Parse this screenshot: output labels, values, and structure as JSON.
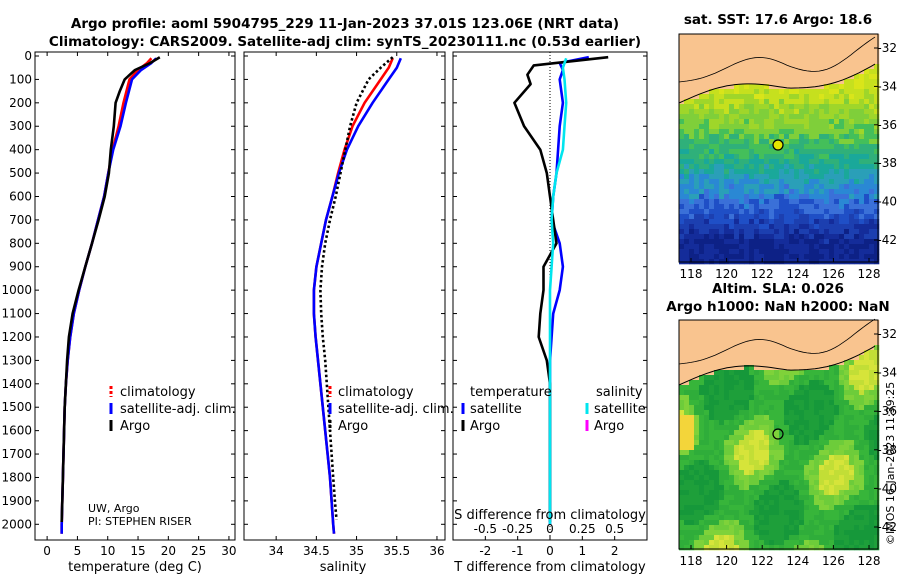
{
  "header": {
    "title_line1": "Argo profile: aoml 5904795_229 11-Jan-2023 37.01S 123.06E (NRT data)",
    "title_line2": "Climatology: CARS2009. Satellite-adj clim: synTS_20230111.nc (0.53d earlier)"
  },
  "credits": {
    "line1": "UW, Argo",
    "line2": "PI: STEPHEN RISER"
  },
  "timestamp": "©IMOS 16-Jan-2023 11:39:25",
  "colors": {
    "climatology": "#ff0000",
    "satellite": "#0000ff",
    "argo": "#000000",
    "sal_satellite": "#00e5ee",
    "sal_argo": "#ff00ff"
  },
  "maps": {
    "sst": {
      "title": "sat. SST: 17.6 Argo: 18.6",
      "yticks": [
        "-32",
        "-34",
        "-36",
        "-38",
        "-40",
        "-42"
      ],
      "xticks": [
        "118",
        "120",
        "122",
        "124",
        "126",
        "128"
      ]
    },
    "sla": {
      "title1": "Altim. SLA: 0.026",
      "title2": "Argo h1000: NaN h2000: NaN",
      "yticks": [
        "-32",
        "-34",
        "-36",
        "-38",
        "-40",
        "-42"
      ],
      "xticks": [
        "118",
        "120",
        "122",
        "124",
        "126",
        "128"
      ]
    }
  },
  "chart_data": [
    {
      "type": "line",
      "name": "temperature profile",
      "xlabel": "temperature (deg C)",
      "ylabel": "",
      "xlim": [
        -2,
        31
      ],
      "ylim": [
        2050,
        0
      ],
      "xticks": [
        0,
        5,
        10,
        15,
        20,
        25,
        30
      ],
      "yticks": [
        0,
        100,
        200,
        300,
        400,
        500,
        600,
        700,
        800,
        900,
        1000,
        1100,
        1200,
        1300,
        1400,
        1500,
        1600,
        1700,
        1800,
        1900,
        2000
      ],
      "legend": [
        "climatology",
        "satellite-adj. clim.",
        "Argo"
      ],
      "series": [
        {
          "name": "climatology",
          "color": "#ff0000",
          "dash": false,
          "points": [
            [
              17.2,
              10
            ],
            [
              16.5,
              30
            ],
            [
              15,
              60
            ],
            [
              13.6,
              100
            ],
            [
              12.6,
              200
            ],
            [
              11.8,
              300
            ],
            [
              10.8,
              400
            ],
            [
              10.1,
              500
            ],
            [
              9.4,
              600
            ],
            [
              8.4,
              700
            ],
            [
              7.4,
              800
            ],
            [
              6.3,
              900
            ],
            [
              5.3,
              1000
            ],
            [
              4.4,
              1100
            ],
            [
              3.8,
              1200
            ],
            [
              3.4,
              1300
            ],
            [
              3.1,
              1400
            ],
            [
              2.9,
              1500
            ],
            [
              2.8,
              1600
            ],
            [
              2.7,
              1700
            ],
            [
              2.6,
              1800
            ],
            [
              2.5,
              1900
            ],
            [
              2.4,
              2000
            ],
            [
              2.4,
              2040
            ]
          ]
        },
        {
          "name": "satellite-adj. clim.",
          "color": "#0000ff",
          "dash": false,
          "points": [
            [
              18,
              10
            ],
            [
              17.2,
              30
            ],
            [
              15.5,
              60
            ],
            [
              14,
              100
            ],
            [
              13,
              200
            ],
            [
              12.1,
              300
            ],
            [
              10.9,
              400
            ],
            [
              10.1,
              500
            ],
            [
              9.4,
              600
            ],
            [
              8.4,
              700
            ],
            [
              7.4,
              800
            ],
            [
              6.3,
              900
            ],
            [
              5.3,
              1000
            ],
            [
              4.4,
              1100
            ],
            [
              3.8,
              1200
            ],
            [
              3.4,
              1300
            ],
            [
              3.1,
              1400
            ],
            [
              2.9,
              1500
            ],
            [
              2.8,
              1600
            ],
            [
              2.7,
              1700
            ],
            [
              2.6,
              1800
            ],
            [
              2.5,
              1900
            ],
            [
              2.4,
              2000
            ],
            [
              2.4,
              2040
            ]
          ]
        },
        {
          "name": "Argo",
          "color": "#000000",
          "dash": false,
          "points": [
            [
              18.6,
              5
            ],
            [
              17,
              30
            ],
            [
              14.5,
              60
            ],
            [
              12.8,
              100
            ],
            [
              12,
              150
            ],
            [
              11.3,
              200
            ],
            [
              11,
              300
            ],
            [
              10.5,
              400
            ],
            [
              10.2,
              500
            ],
            [
              9.5,
              600
            ],
            [
              8.5,
              700
            ],
            [
              7.4,
              800
            ],
            [
              6.3,
              900
            ],
            [
              5.2,
              1000
            ],
            [
              4.2,
              1100
            ],
            [
              3.6,
              1200
            ],
            [
              3.3,
              1300
            ],
            [
              3.1,
              1400
            ],
            [
              2.9,
              1500
            ],
            [
              2.8,
              1600
            ],
            [
              2.7,
              1700
            ],
            [
              2.6,
              1800
            ],
            [
              2.5,
              1900
            ],
            [
              2.4,
              1990
            ]
          ]
        }
      ]
    },
    {
      "type": "line",
      "name": "salinity profile",
      "xlabel": "salinity",
      "ylabel": "",
      "xlim": [
        33.6,
        36.1
      ],
      "ylim": [
        2050,
        0
      ],
      "xticks": [
        34,
        34.5,
        35,
        35.5,
        36
      ],
      "legend": [
        "climatology",
        "satellite-adj. clim.",
        "Argo"
      ],
      "series": [
        {
          "name": "climatology",
          "color": "#ff0000",
          "dash": false,
          "points": [
            [
              35.45,
              10
            ],
            [
              35.4,
              50
            ],
            [
              35.3,
              100
            ],
            [
              35.1,
              200
            ],
            [
              34.95,
              300
            ],
            [
              34.85,
              400
            ],
            [
              34.77,
              500
            ],
            [
              34.7,
              600
            ],
            [
              34.62,
              700
            ],
            [
              34.56,
              800
            ],
            [
              34.5,
              900
            ],
            [
              34.47,
              1000
            ],
            [
              34.47,
              1100
            ],
            [
              34.49,
              1200
            ],
            [
              34.52,
              1300
            ],
            [
              34.55,
              1400
            ],
            [
              34.58,
              1500
            ],
            [
              34.61,
              1600
            ],
            [
              34.64,
              1700
            ],
            [
              34.67,
              1800
            ],
            [
              34.69,
              1900
            ],
            [
              34.71,
              2000
            ],
            [
              34.72,
              2040
            ]
          ]
        },
        {
          "name": "satellite-adj. clim.",
          "color": "#0000ff",
          "dash": false,
          "points": [
            [
              35.55,
              10
            ],
            [
              35.5,
              50
            ],
            [
              35.4,
              100
            ],
            [
              35.2,
              200
            ],
            [
              35.02,
              300
            ],
            [
              34.88,
              400
            ],
            [
              34.78,
              500
            ],
            [
              34.7,
              600
            ],
            [
              34.62,
              700
            ],
            [
              34.56,
              800
            ],
            [
              34.5,
              900
            ],
            [
              34.47,
              1000
            ],
            [
              34.47,
              1100
            ],
            [
              34.49,
              1200
            ],
            [
              34.52,
              1300
            ],
            [
              34.55,
              1400
            ],
            [
              34.58,
              1500
            ],
            [
              34.61,
              1600
            ],
            [
              34.64,
              1700
            ],
            [
              34.67,
              1800
            ],
            [
              34.69,
              1900
            ],
            [
              34.71,
              2000
            ],
            [
              34.72,
              2040
            ]
          ]
        },
        {
          "name": "Argo",
          "color": "#000000",
          "dash": true,
          "points": [
            [
              35.45,
              5
            ],
            [
              35.3,
              50
            ],
            [
              35.15,
              100
            ],
            [
              35.0,
              200
            ],
            [
              34.92,
              300
            ],
            [
              34.86,
              400
            ],
            [
              34.8,
              500
            ],
            [
              34.74,
              600
            ],
            [
              34.67,
              700
            ],
            [
              34.61,
              800
            ],
            [
              34.57,
              900
            ],
            [
              34.55,
              1000
            ],
            [
              34.56,
              1100
            ],
            [
              34.58,
              1200
            ],
            [
              34.61,
              1300
            ],
            [
              34.63,
              1400
            ],
            [
              34.65,
              1500
            ],
            [
              34.67,
              1600
            ],
            [
              34.69,
              1700
            ],
            [
              34.71,
              1800
            ],
            [
              34.73,
              1900
            ],
            [
              34.75,
              1980
            ]
          ]
        }
      ]
    },
    {
      "type": "line",
      "name": "difference from climatology",
      "xlabel": "T difference from climatology",
      "x2label": "S difference from climatology",
      "xlim": [
        -3,
        3
      ],
      "ylim": [
        2050,
        0
      ],
      "xticks": [
        "-2",
        "-1",
        "0",
        "1",
        "2"
      ],
      "x2ticks": [
        "-0.5",
        "-0.25",
        "0",
        "0.25",
        "0.5"
      ],
      "legend_temperature": "temperature",
      "legend_salinity": "salinity",
      "legend_items": [
        "satellite",
        "Argo",
        "satellite",
        "Argo"
      ],
      "series": [
        {
          "name": "temperature satellite",
          "color": "#0000ff",
          "points": [
            [
              1.2,
              5
            ],
            [
              0.3,
              30
            ],
            [
              0.4,
              60
            ],
            [
              0.3,
              100
            ],
            [
              0.4,
              200
            ],
            [
              0.3,
              300
            ],
            [
              0.25,
              400
            ],
            [
              0.2,
              500
            ],
            [
              0.1,
              600
            ],
            [
              0.05,
              700
            ],
            [
              0.3,
              800
            ],
            [
              0.4,
              900
            ],
            [
              0.3,
              1000
            ],
            [
              0.1,
              1100
            ],
            [
              0.05,
              1200
            ],
            [
              0,
              1300
            ],
            [
              0,
              1500
            ],
            [
              0,
              1700
            ],
            [
              0,
              1900
            ],
            [
              0,
              2000
            ]
          ]
        },
        {
          "name": "temperature Argo",
          "color": "#000000",
          "points": [
            [
              1.8,
              5
            ],
            [
              -0.5,
              40
            ],
            [
              -0.7,
              80
            ],
            [
              -0.6,
              120
            ],
            [
              -1.1,
              200
            ],
            [
              -0.8,
              300
            ],
            [
              -0.3,
              400
            ],
            [
              -0.1,
              500
            ],
            [
              0,
              600
            ],
            [
              0.1,
              700
            ],
            [
              0.2,
              800
            ],
            [
              -0.2,
              900
            ],
            [
              -0.2,
              1000
            ],
            [
              -0.3,
              1100
            ],
            [
              -0.35,
              1200
            ],
            [
              -0.1,
              1300
            ],
            [
              0,
              1400
            ],
            [
              0,
              1600
            ],
            [
              0,
              1800
            ],
            [
              0,
              1990
            ]
          ]
        },
        {
          "name": "salinity satellite",
          "color": "#00e5ee",
          "points": [
            [
              0.5,
              10
            ],
            [
              0.4,
              50
            ],
            [
              0.45,
              100
            ],
            [
              0.5,
              200
            ],
            [
              0.45,
              300
            ],
            [
              0.4,
              400
            ],
            [
              0.2,
              500
            ],
            [
              0.1,
              600
            ],
            [
              0.05,
              700
            ],
            [
              0.1,
              800
            ],
            [
              0.05,
              900
            ],
            [
              0,
              1000
            ],
            [
              0,
              1200
            ],
            [
              0,
              1500
            ],
            [
              0,
              1800
            ],
            [
              0,
              2000
            ]
          ]
        },
        {
          "name": "salinity Argo",
          "color": "#ff00ff",
          "points": []
        }
      ]
    }
  ]
}
